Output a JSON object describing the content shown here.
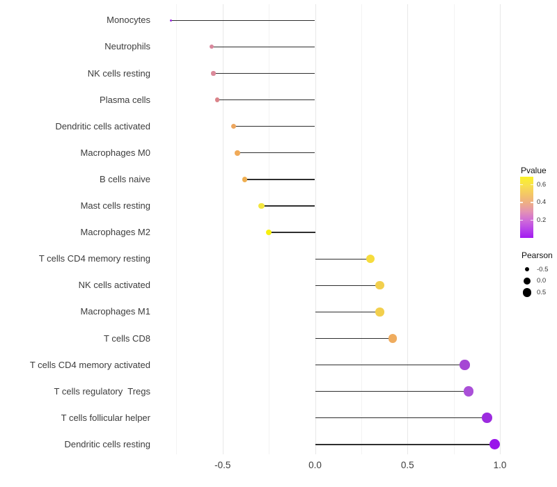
{
  "chart_data": {
    "type": "scatter",
    "subtype": "lollipop",
    "orientation": "horizontal",
    "title": "",
    "xlabel": "",
    "ylabel": "",
    "x_axis": {
      "ticks": [
        {
          "label": "-0.5",
          "value": -0.5
        },
        {
          "label": "0.0",
          "value": 0.0
        },
        {
          "label": "0.5",
          "value": 0.5
        },
        {
          "label": "1.0",
          "value": 1.0
        }
      ],
      "minor_gridlines": [
        -0.75,
        -0.25,
        0.25,
        0.75
      ],
      "range": [
        -0.86,
        1.06
      ]
    },
    "baseline_x": 0.0,
    "points": [
      {
        "label": "Monocytes",
        "pearson": -0.78,
        "color": "#9b2ce2"
      },
      {
        "label": "Neutrophils",
        "pearson": -0.56,
        "color": "#d9879c"
      },
      {
        "label": "NK cells resting",
        "pearson": -0.55,
        "color": "#db8a9a"
      },
      {
        "label": "Plasma cells",
        "pearson": -0.53,
        "color": "#db8389"
      },
      {
        "label": "Dendritic cells activated",
        "pearson": -0.44,
        "color": "#eda65e"
      },
      {
        "label": "Macrophages M0",
        "pearson": -0.42,
        "color": "#f0aa59"
      },
      {
        "label": "B cells naive",
        "pearson": -0.38,
        "color": "#efae51"
      },
      {
        "label": "Mast cells resting",
        "pearson": -0.29,
        "color": "#f3e63e"
      },
      {
        "label": "Macrophages M2",
        "pearson": -0.25,
        "color": "#f6ef10"
      },
      {
        "label": "T cells CD4 memory resting",
        "pearson": 0.3,
        "color": "#f6dc3d"
      },
      {
        "label": "NK cells activated",
        "pearson": 0.35,
        "color": "#f2cf4d"
      },
      {
        "label": "Macrophages M1",
        "pearson": 0.35,
        "color": "#f2cf4d"
      },
      {
        "label": "T cells CD8",
        "pearson": 0.42,
        "color": "#efac5e"
      },
      {
        "label": "T cells CD4 memory activated",
        "pearson": 0.81,
        "color": "#a546d4"
      },
      {
        "label": "T cells regulatory  Tregs",
        "pearson": 0.83,
        "color": "#aa50d8"
      },
      {
        "label": "T cells follicular helper",
        "pearson": 0.93,
        "color": "#9c2bdf"
      },
      {
        "label": "Dendritic cells resting",
        "pearson": 0.97,
        "color": "#9915ea"
      }
    ],
    "legend_pvalue": {
      "title": "Pvalue",
      "ticks": [
        {
          "label": "0.6",
          "value": 0.6
        },
        {
          "label": "0.4",
          "value": 0.4
        },
        {
          "label": "0.2",
          "value": 0.2
        }
      ],
      "bar_range": [
        0.0,
        0.69
      ],
      "gradient_bottom_to_top": [
        "#a21bf0",
        "#b844e9",
        "#cf6cd8",
        "#e392b4",
        "#eeae85",
        "#f4c766",
        "#f8e04e",
        "#fbf227"
      ]
    },
    "legend_pearson": {
      "title": "Pearson",
      "entries": [
        {
          "label": "-0.5",
          "value": -0.5
        },
        {
          "label": "0.0",
          "value": 0.0
        },
        {
          "label": "0.5",
          "value": 0.5
        }
      ]
    }
  },
  "colors": {
    "background": "#ffffff",
    "stem": "#2e2e2e",
    "grid_major": "#e8e8e8",
    "grid_minor": "#f3f3f3",
    "axis_text": "#3c3c3c",
    "legend_dot": "#000000"
  }
}
